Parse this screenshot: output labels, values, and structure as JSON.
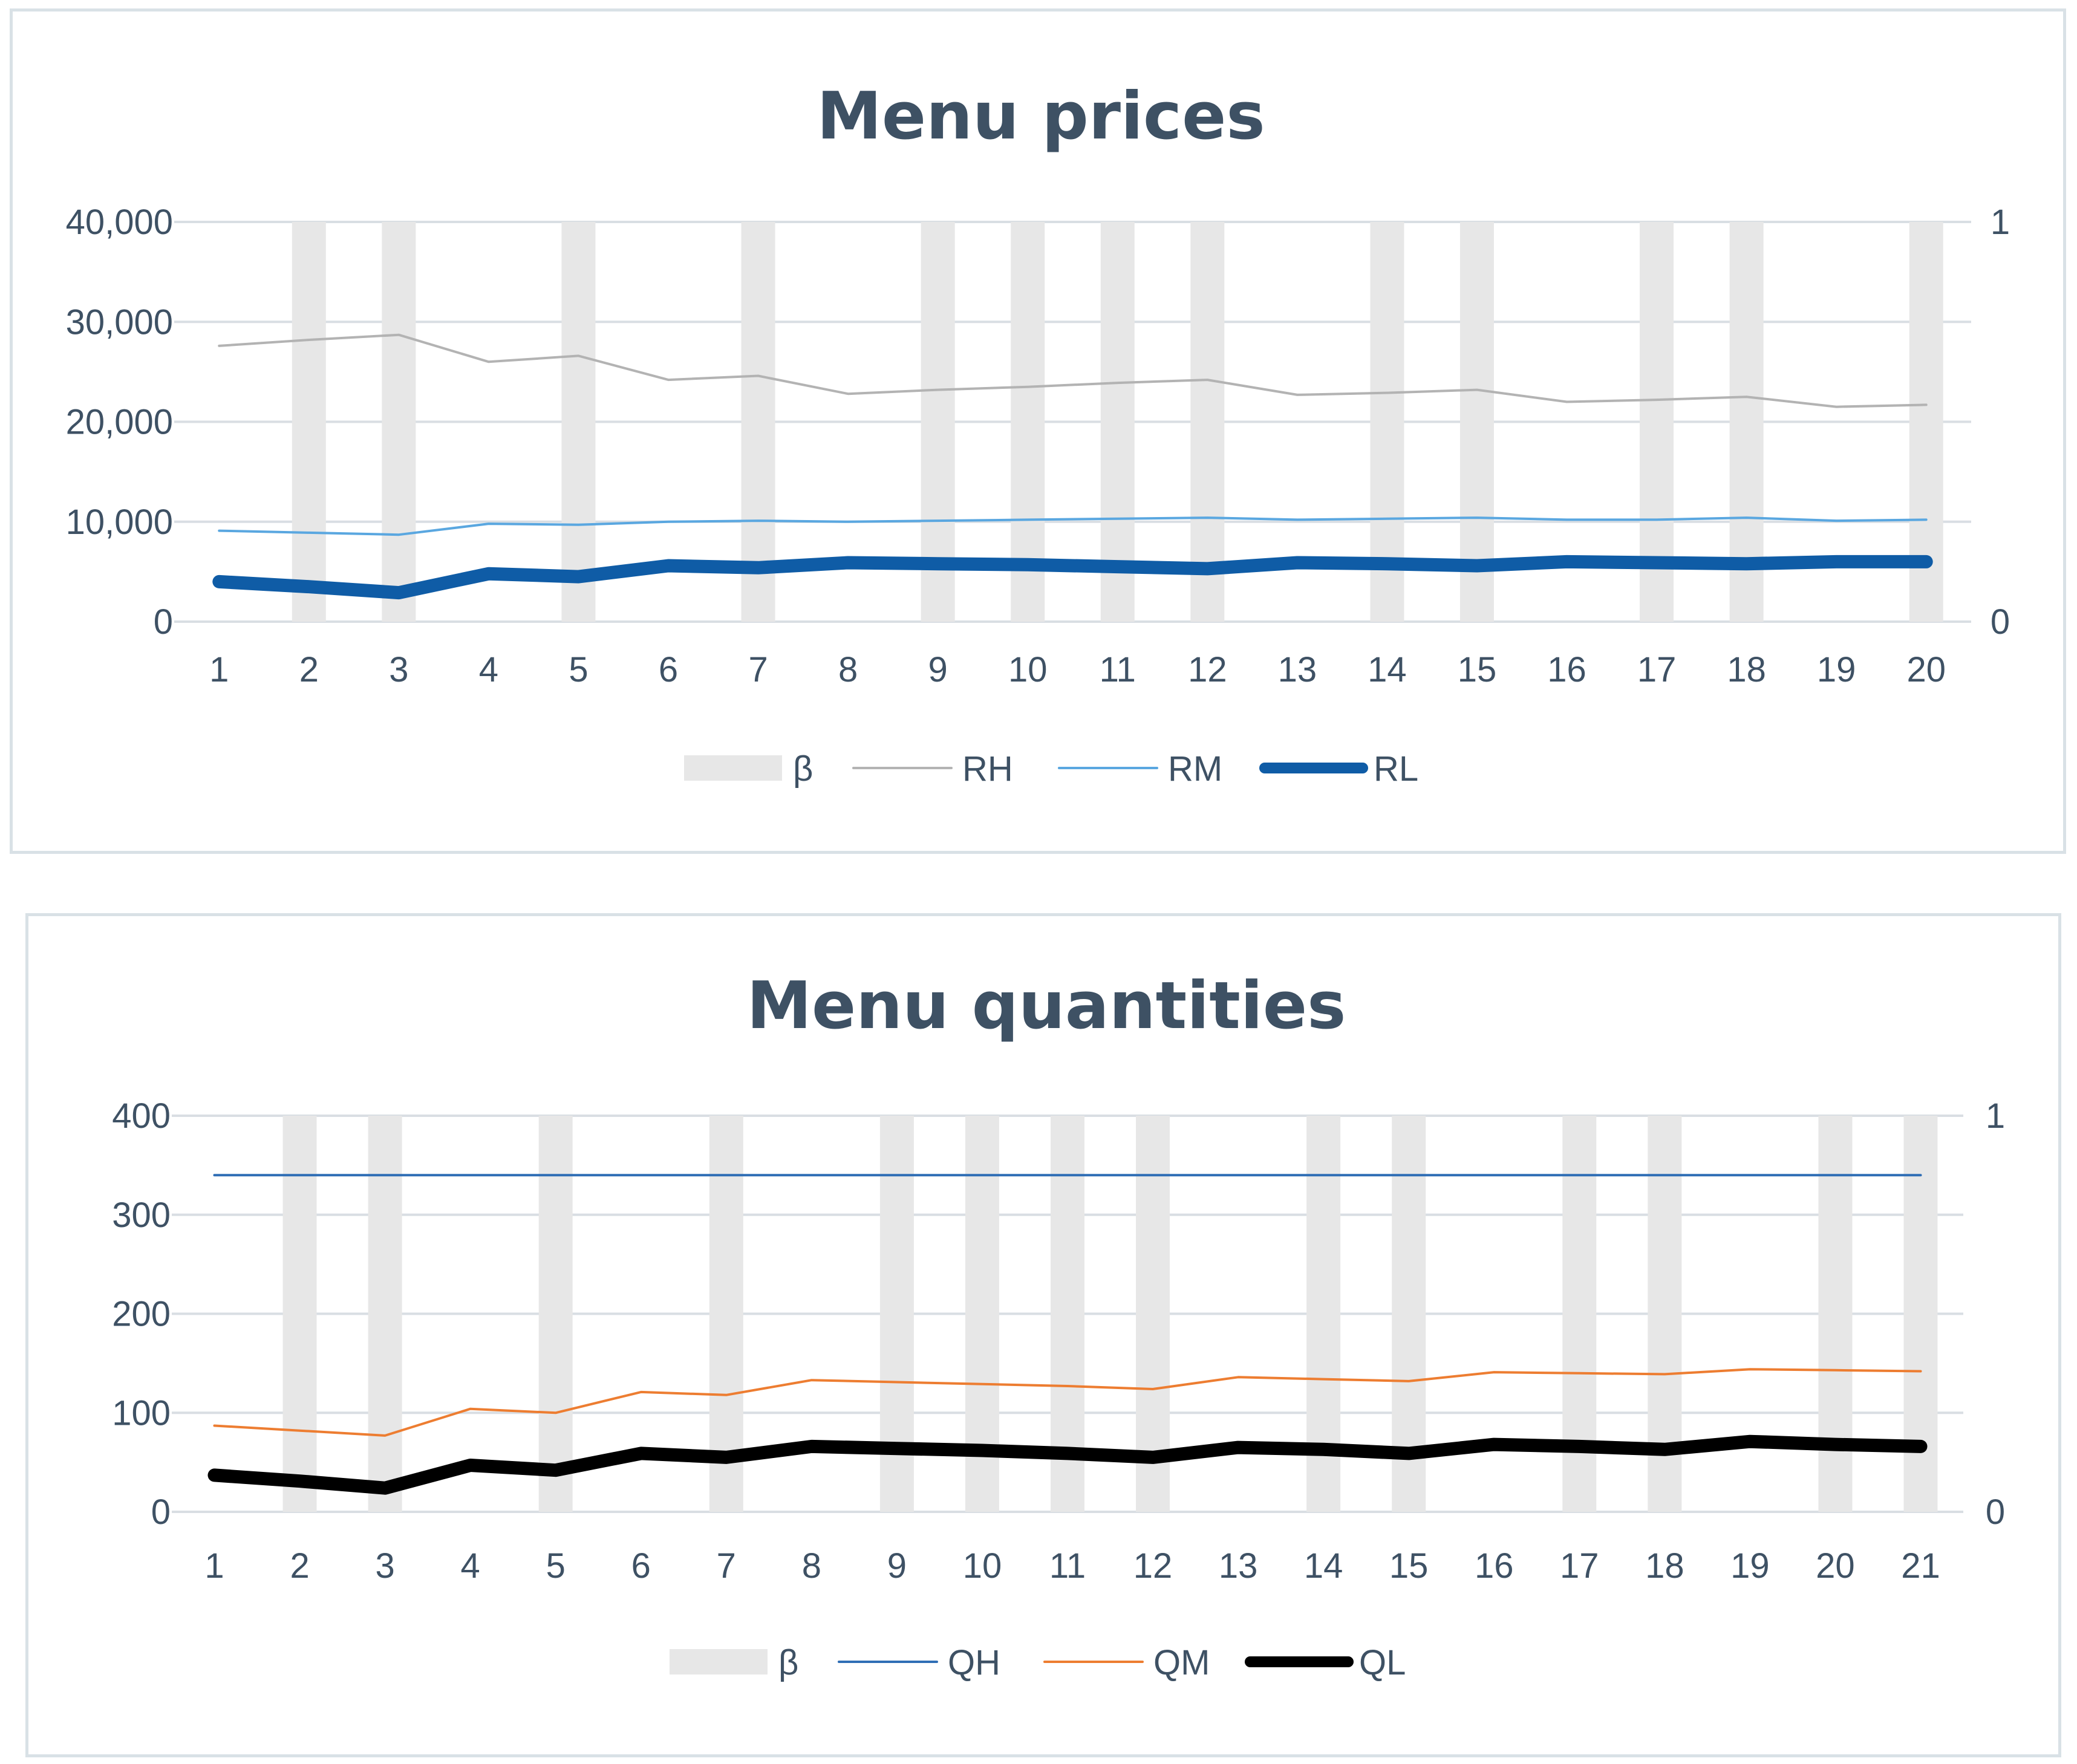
{
  "charts": [
    {
      "id": "prices",
      "chart_data": {
        "type": "bar",
        "title": "Menu prices",
        "categories": [
          "1",
          "2",
          "3",
          "4",
          "5",
          "6",
          "7",
          "8",
          "9",
          "10",
          "11",
          "12",
          "13",
          "14",
          "15",
          "16",
          "17",
          "18",
          "19",
          "20"
        ],
        "y_left_ticks": [
          "0",
          "10,000",
          "20,000",
          "30,000",
          "40,000"
        ],
        "y_left_range": [
          0,
          40000
        ],
        "y_right_ticks": [
          "0",
          "1"
        ],
        "y_right_range": [
          0,
          1
        ],
        "grid": true,
        "legend_position": "bottom",
        "bar_series": {
          "name": "β",
          "axis": "right",
          "color": "#e7e7e7",
          "values": [
            0,
            1,
            1,
            0,
            1,
            0,
            1,
            0,
            1,
            1,
            1,
            1,
            0,
            1,
            1,
            0,
            1,
            1,
            0,
            1
          ]
        },
        "line_series": [
          {
            "name": "RH",
            "color": "#b3b3b3",
            "width": 4,
            "values": [
              27600,
              28200,
              28700,
              26000,
              26600,
              24200,
              24600,
              22800,
              23200,
              23500,
              23900,
              24200,
              22700,
              22900,
              23200,
              22000,
              22200,
              22500,
              21500,
              21700
            ]
          },
          {
            "name": "RM",
            "color": "#5aa7e0",
            "width": 4,
            "values": [
              9100,
              8900,
              8700,
              9800,
              9700,
              10000,
              10100,
              10000,
              10100,
              10200,
              10300,
              10400,
              10200,
              10300,
              10400,
              10200,
              10200,
              10400,
              10100,
              10200
            ]
          },
          {
            "name": "RL",
            "color": "#0f5ca6",
            "width": 22,
            "values": [
              4000,
              3500,
              2900,
              4800,
              4500,
              5600,
              5400,
              5900,
              5800,
              5700,
              5500,
              5300,
              5900,
              5800,
              5600,
              6000,
              5900,
              5800,
              6000,
              6000
            ]
          }
        ]
      }
    },
    {
      "id": "quantities",
      "chart_data": {
        "type": "bar",
        "title": "Menu quantities",
        "categories": [
          "1",
          "2",
          "3",
          "4",
          "5",
          "6",
          "7",
          "8",
          "9",
          "10",
          "11",
          "12",
          "13",
          "14",
          "15",
          "16",
          "17",
          "18",
          "19",
          "20",
          "21"
        ],
        "y_left_ticks": [
          "0",
          "100",
          "200",
          "300",
          "400"
        ],
        "y_left_range": [
          0,
          400
        ],
        "y_right_ticks": [
          "0",
          "1"
        ],
        "y_right_range": [
          0,
          1
        ],
        "grid": true,
        "legend_position": "bottom",
        "bar_series": {
          "name": "β",
          "axis": "right",
          "color": "#e7e7e7",
          "values": [
            0,
            1,
            1,
            0,
            1,
            0,
            1,
            0,
            1,
            1,
            1,
            1,
            0,
            1,
            1,
            0,
            1,
            1,
            0,
            1,
            1
          ]
        },
        "line_series": [
          {
            "name": "QH",
            "color": "#2f6eb5",
            "width": 4,
            "values": [
              340,
              340,
              340,
              340,
              340,
              340,
              340,
              340,
              340,
              340,
              340,
              340,
              340,
              340,
              340,
              340,
              340,
              340,
              340,
              340,
              340
            ]
          },
          {
            "name": "QM",
            "color": "#ed7d31",
            "width": 4,
            "values": [
              87,
              82,
              77,
              104,
              100,
              121,
              118,
              133,
              131,
              129,
              127,
              124,
              136,
              134,
              132,
              141,
              140,
              139,
              144,
              143,
              142
            ]
          },
          {
            "name": "QL",
            "color": "#000000",
            "width": 22,
            "values": [
              37,
              31,
              24,
              47,
              42,
              59,
              55,
              66,
              64,
              62,
              59,
              55,
              65,
              63,
              59,
              68,
              66,
              63,
              71,
              68,
              66
            ]
          }
        ]
      }
    }
  ]
}
